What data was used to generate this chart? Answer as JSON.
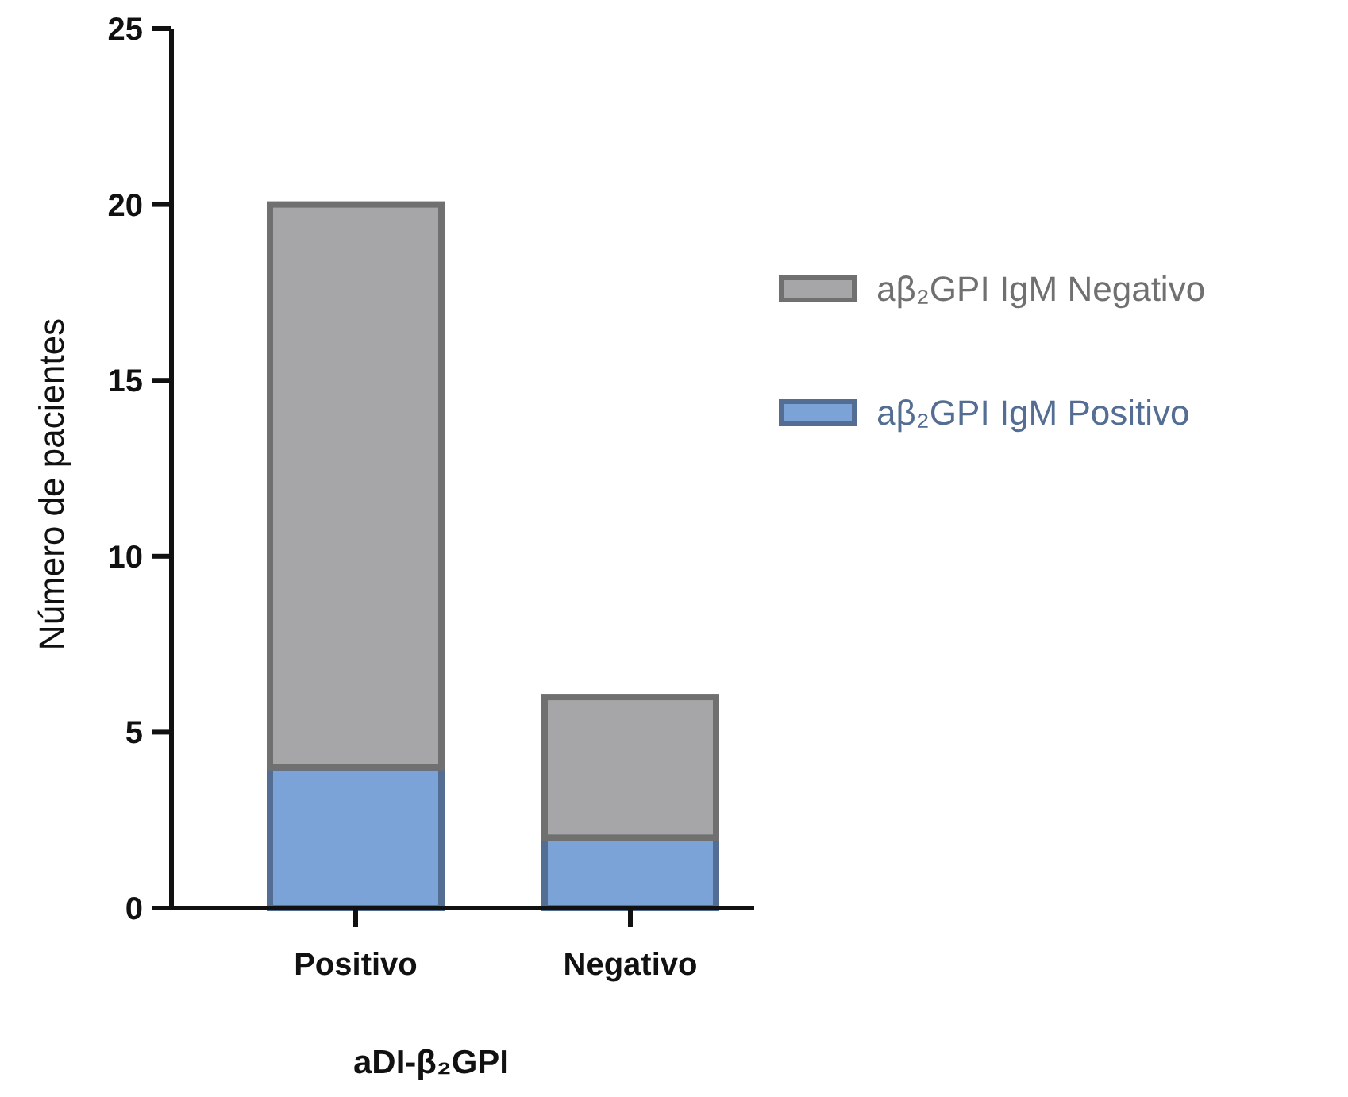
{
  "chart_data": {
    "type": "bar",
    "stacked": true,
    "xlabel": "aDI-β₂GPI",
    "ylabel": "Número de pacientes",
    "categories": [
      "Positivo",
      "Negativo"
    ],
    "series": [
      {
        "name": "aβ₂GPI IgM Positivo",
        "color": "#7ba3d8",
        "values": [
          4,
          2
        ]
      },
      {
        "name": "aβ₂GPI IgM Negativo",
        "color": "#a6a6a8",
        "values": [
          16,
          4
        ]
      }
    ],
    "ylim": [
      0,
      25
    ],
    "yticks": [
      0,
      5,
      10,
      15,
      20,
      25
    ],
    "grid": false,
    "legend": "right"
  }
}
